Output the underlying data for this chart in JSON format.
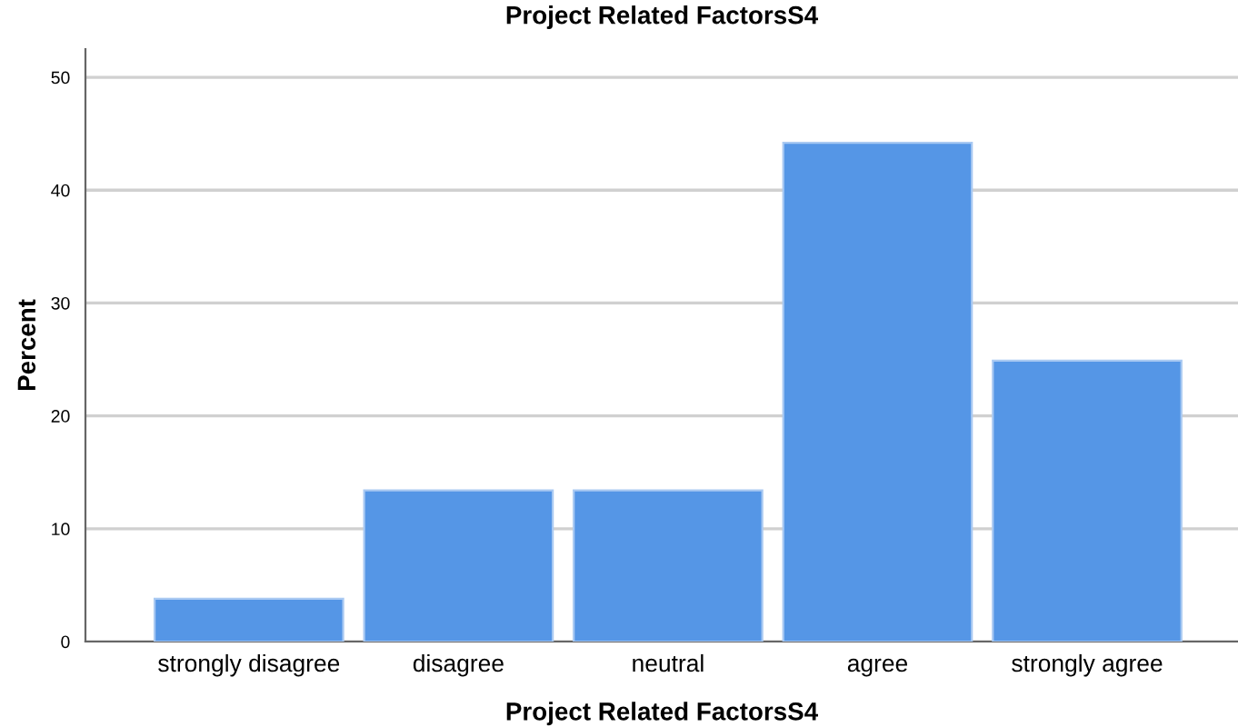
{
  "chart_data": {
    "type": "bar",
    "title": "Project Related FactorsS4",
    "xlabel": "Project Related FactorsS4",
    "ylabel": "Percent",
    "categories": [
      "strongly disagree",
      "disagree",
      "neutral",
      "agree",
      "strongly agree"
    ],
    "values": [
      3.8,
      13.4,
      13.4,
      44.2,
      24.9
    ],
    "color": "#5596e6",
    "ylim": [
      0,
      52.5
    ],
    "yticks": [
      0,
      10,
      20,
      30,
      40,
      50
    ],
    "grid": "y"
  }
}
